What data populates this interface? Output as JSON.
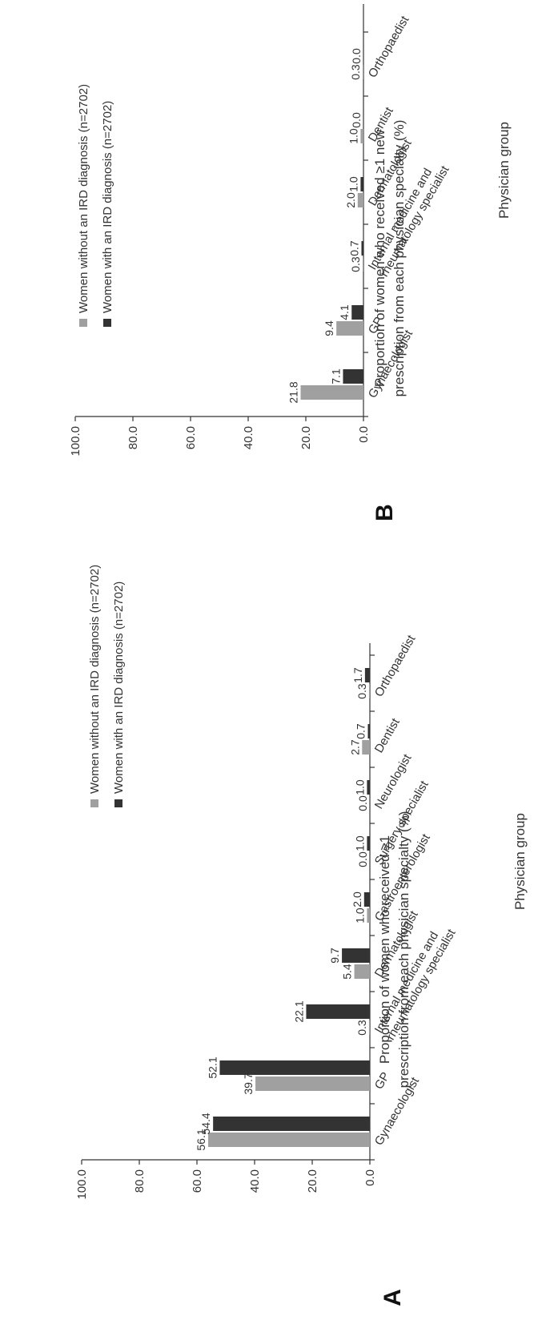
{
  "chart_data": [
    {
      "type": "bar",
      "panel": "A",
      "ylabel_line1": "Proportion of women who received ≥1",
      "ylabel_line2": "prescription from each physician specialty (%)",
      "xlabel": "Physician group",
      "ylim": [
        0,
        100
      ],
      "yticks": [
        "0.0",
        "20.0",
        "40.0",
        "60.0",
        "80.0",
        "100.0"
      ],
      "legend_position": "top",
      "categories": [
        [
          "Gynaecologist"
        ],
        [
          "GP"
        ],
        [
          "Internal medicine and",
          "rheumatology specialist"
        ],
        [
          "Dermatologist"
        ],
        [
          "Gastroenterologist"
        ],
        [
          "Surgery specialist"
        ],
        [
          "Neurologist"
        ],
        [
          "Dentist"
        ],
        [
          "Orthopaedist"
        ]
      ],
      "series": [
        {
          "name": "Women without an IRD diagnosis (n=2702)",
          "color": "#a0a0a0",
          "values": [
            56.1,
            39.7,
            0.3,
            5.4,
            1.0,
            0.0,
            0.0,
            2.7,
            0.3
          ],
          "labels": [
            "56.1",
            "39.7",
            "0.3",
            "5.4",
            "1.0",
            "0.0",
            "0.0",
            "2.7",
            "0.3"
          ]
        },
        {
          "name": "Women with an IRD diagnosis (n=2702)",
          "color": "#333333",
          "values": [
            54.4,
            52.1,
            22.1,
            9.7,
            2.0,
            1.0,
            1.0,
            0.7,
            1.7
          ],
          "labels": [
            "54.4",
            "52.1",
            "22.1",
            "9.7",
            "2.0",
            "1.0",
            "1.0",
            "0.7",
            "1.7"
          ]
        }
      ]
    },
    {
      "type": "bar",
      "panel": "B",
      "ylabel_line1": "Proportion of women who received ≥1 new",
      "ylabel_line2": "prescription from each physician specialty (%)",
      "xlabel": "Physician group",
      "ylim": [
        0,
        100
      ],
      "yticks": [
        "0.0",
        "20.0",
        "40.0",
        "60.0",
        "80.0",
        "100.0"
      ],
      "legend_position": "top",
      "categories": [
        [
          "Gynaecologist"
        ],
        [
          "GP"
        ],
        [
          "Internal medicine and",
          "rheumatology specialist"
        ],
        [
          "Dermatologist"
        ],
        [
          "Dentist"
        ],
        [
          "Orthopaedist"
        ]
      ],
      "series": [
        {
          "name": "Women without an IRD diagnosis (n=2702)",
          "color": "#a0a0a0",
          "values": [
            21.8,
            9.4,
            0.3,
            2.0,
            1.0,
            0.3
          ],
          "labels": [
            "21.8",
            "9.4",
            "0.3",
            "2.0",
            "1.0",
            "0.3"
          ]
        },
        {
          "name": "Women with an IRD diagnosis (n=2702)",
          "color": "#333333",
          "values": [
            7.1,
            4.1,
            0.7,
            1.0,
            0.0,
            0.0
          ],
          "labels": [
            "7.1",
            "4.1",
            "0.7",
            "1.0",
            "0.0",
            "0.0"
          ]
        }
      ]
    }
  ]
}
